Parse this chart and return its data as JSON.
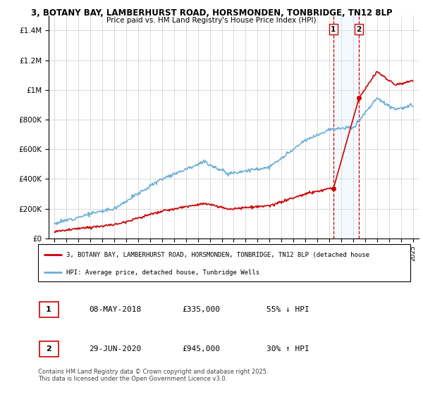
{
  "title_line1": "3, BOTANY BAY, LAMBERHURST ROAD, HORSMONDEN, TONBRIDGE, TN12 8LP",
  "title_line2": "Price paid vs. HM Land Registry's House Price Index (HPI)",
  "ylabel_ticks": [
    "£0",
    "£200K",
    "£400K",
    "£600K",
    "£800K",
    "£1M",
    "£1.2M",
    "£1.4M"
  ],
  "ylim": [
    0,
    1500000
  ],
  "yticks": [
    0,
    200000,
    400000,
    600000,
    800000,
    1000000,
    1200000,
    1400000
  ],
  "x_start_year": 1995,
  "x_end_year": 2025,
  "hpi_color": "#6baed6",
  "price_color": "#cc0000",
  "sale1_date": 2018.35,
  "sale1_price": 335000,
  "sale2_date": 2020.49,
  "sale2_price": 945000,
  "legend_line1": "3, BOTANY BAY, LAMBERHURST ROAD, HORSMONDEN, TONBRIDGE, TN12 8LP (detached house",
  "legend_line2": "HPI: Average price, detached house, Tunbridge Wells",
  "table_row1": [
    "1",
    "08-MAY-2018",
    "£335,000",
    "55% ↓ HPI"
  ],
  "table_row2": [
    "2",
    "29-JUN-2020",
    "£945,000",
    "30% ↑ HPI"
  ],
  "footnote": "Contains HM Land Registry data © Crown copyright and database right 2025.\nThis data is licensed under the Open Government Licence v3.0.",
  "shade_color": "#ddeeff",
  "bg_color": "#ffffff",
  "grid_color": "#cccccc"
}
